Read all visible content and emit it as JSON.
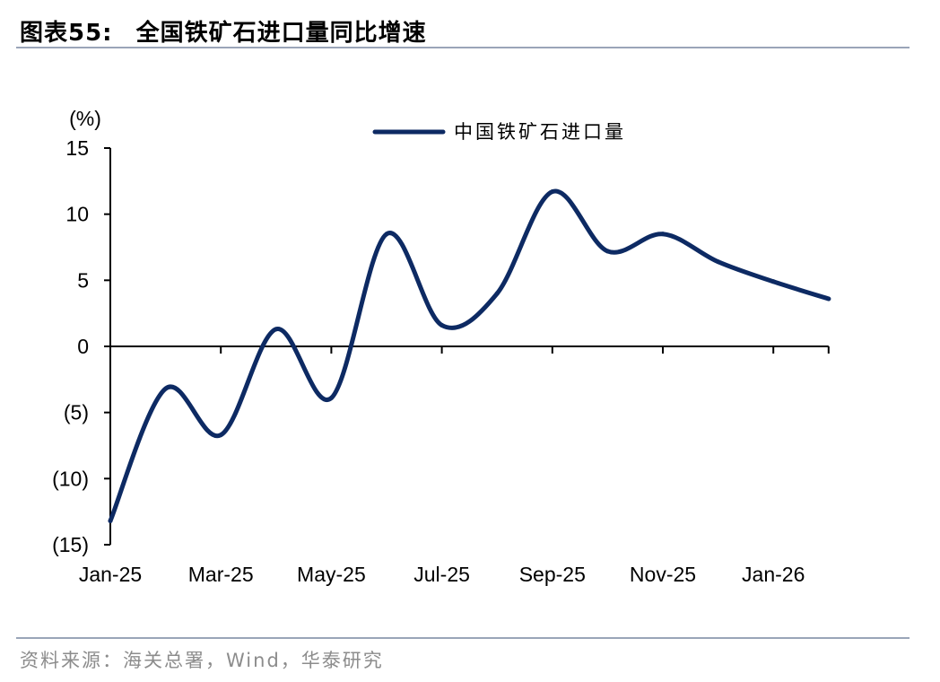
{
  "title": {
    "figure_label": "图表55:",
    "text": "全国铁矿石进口量同比增速"
  },
  "source": "资料来源：海关总署，Wind，华泰研究",
  "colors": {
    "series": "#0d2a63",
    "axis": "#000000",
    "rule": "#9aa5b8",
    "source_text": "#8c8c8c"
  },
  "chart_data": {
    "type": "line",
    "title": "",
    "xlabel": "",
    "ylabel": "(%)",
    "ylim": [
      -15,
      15
    ],
    "y_ticks": [
      15,
      10,
      5,
      0,
      -5,
      -10,
      -15
    ],
    "y_tick_labels": [
      "15",
      "10",
      "5",
      "0",
      "(5)",
      "(10)",
      "(15)"
    ],
    "x_tick_labels": [
      "Jan-25",
      "Mar-25",
      "May-25",
      "Jul-25",
      "Sep-25",
      "Nov-25",
      "Jan-26"
    ],
    "categories": [
      "Jan-25",
      "Feb-25",
      "Mar-25",
      "Apr-25",
      "May-25",
      "Jun-25",
      "Jul-25",
      "Aug-25",
      "Sep-25",
      "Oct-25",
      "Nov-25",
      "Dec-25",
      "Jan-26",
      "Feb-26"
    ],
    "series": [
      {
        "name": "中国铁矿石进口量",
        "values": [
          -13.2,
          -3.2,
          -6.7,
          1.3,
          -3.9,
          8.5,
          1.6,
          4.0,
          11.7,
          7.2,
          8.5,
          6.4,
          4.9,
          3.6
        ]
      }
    ],
    "legend": "top-right",
    "grid": false,
    "smooth": true
  }
}
